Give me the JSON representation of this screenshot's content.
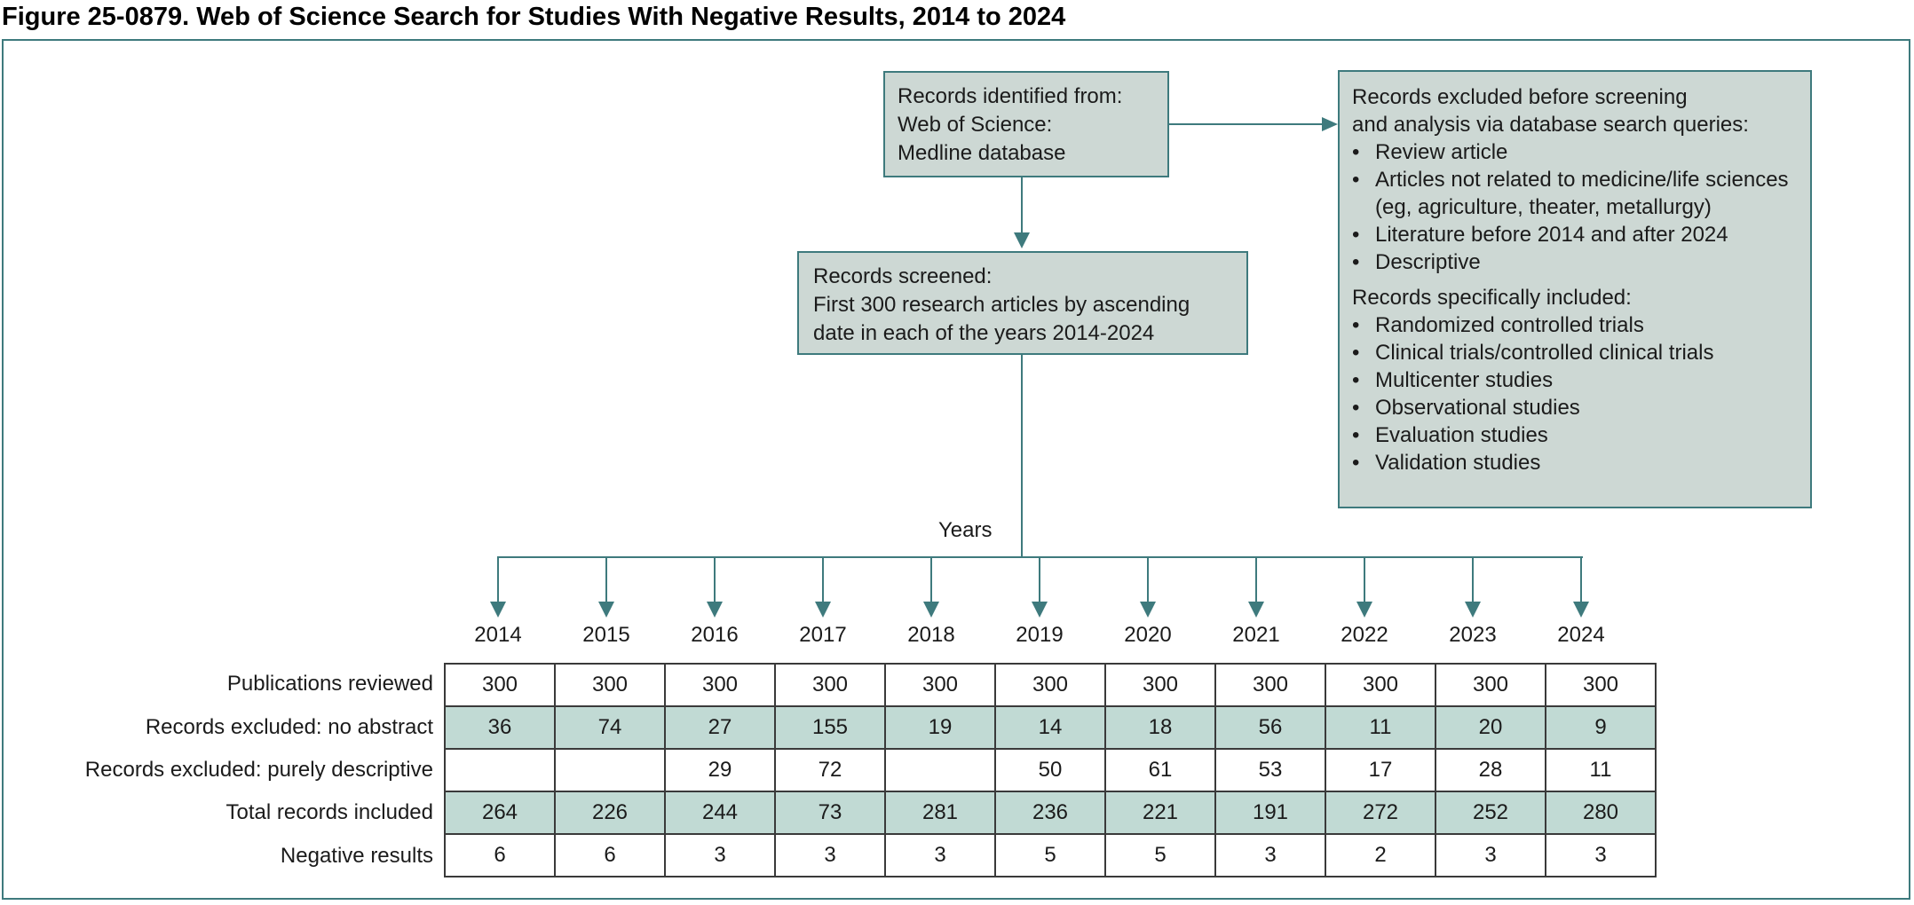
{
  "title": "Figure 25-0879. Web of Science Search for Studies With Negative Results, 2014 to 2024",
  "flowchart": {
    "identified_box": {
      "lines": [
        "Records identified from:",
        "Web of Science:",
        "Medline database"
      ]
    },
    "screened_box": {
      "lines": [
        "Records screened:",
        "First 300 research articles by ascending",
        "date in each of the years 2014-2024"
      ]
    },
    "excluded_box": {
      "heading_lines": [
        "Records excluded before screening",
        "and analysis via database search queries:"
      ],
      "excluded_bullets": [
        "Review article",
        "Articles not related to medicine/life sciences (eg, agriculture, theater, metallurgy)",
        "Literature before 2014 and after 2024",
        "Descriptive"
      ],
      "included_heading": "Records specifically included:",
      "included_bullets": [
        "Randomized controlled trials",
        "Clinical trials/controlled clinical trials",
        "Multicenter studies",
        "Observational studies",
        "Evaluation studies",
        "Validation studies"
      ]
    },
    "branch_label": "Years"
  },
  "chart_data": {
    "type": "table",
    "categories": [
      "2014",
      "2015",
      "2016",
      "2017",
      "2018",
      "2019",
      "2020",
      "2021",
      "2022",
      "2023",
      "2024"
    ],
    "rows": [
      {
        "label": "Publications reviewed",
        "shaded": false,
        "values": [
          "300",
          "300",
          "300",
          "300",
          "300",
          "300",
          "300",
          "300",
          "300",
          "300",
          "300"
        ]
      },
      {
        "label": "Records excluded: no abstract",
        "shaded": true,
        "values": [
          "36",
          "74",
          "27",
          "155",
          "19",
          "14",
          "18",
          "56",
          "11",
          "20",
          "9"
        ]
      },
      {
        "label": "Records excluded: purely descriptive",
        "shaded": false,
        "values": [
          "",
          "",
          "29",
          "72",
          "",
          "50",
          "61",
          "53",
          "17",
          "28",
          "11"
        ]
      },
      {
        "label": "Total records included",
        "shaded": true,
        "values": [
          "264",
          "226",
          "244",
          "73",
          "281",
          "236",
          "221",
          "191",
          "272",
          "252",
          "280"
        ]
      },
      {
        "label": "Negative results",
        "shaded": false,
        "values": [
          "6",
          "6",
          "3",
          "3",
          "3",
          "5",
          "5",
          "3",
          "2",
          "3",
          "3"
        ]
      }
    ]
  },
  "colors": {
    "line_teal": "#3E7A7D",
    "box_fill": "#CDD8D4",
    "shaded_row": "#C1DAD4",
    "table_border": "#3A3A3A"
  }
}
